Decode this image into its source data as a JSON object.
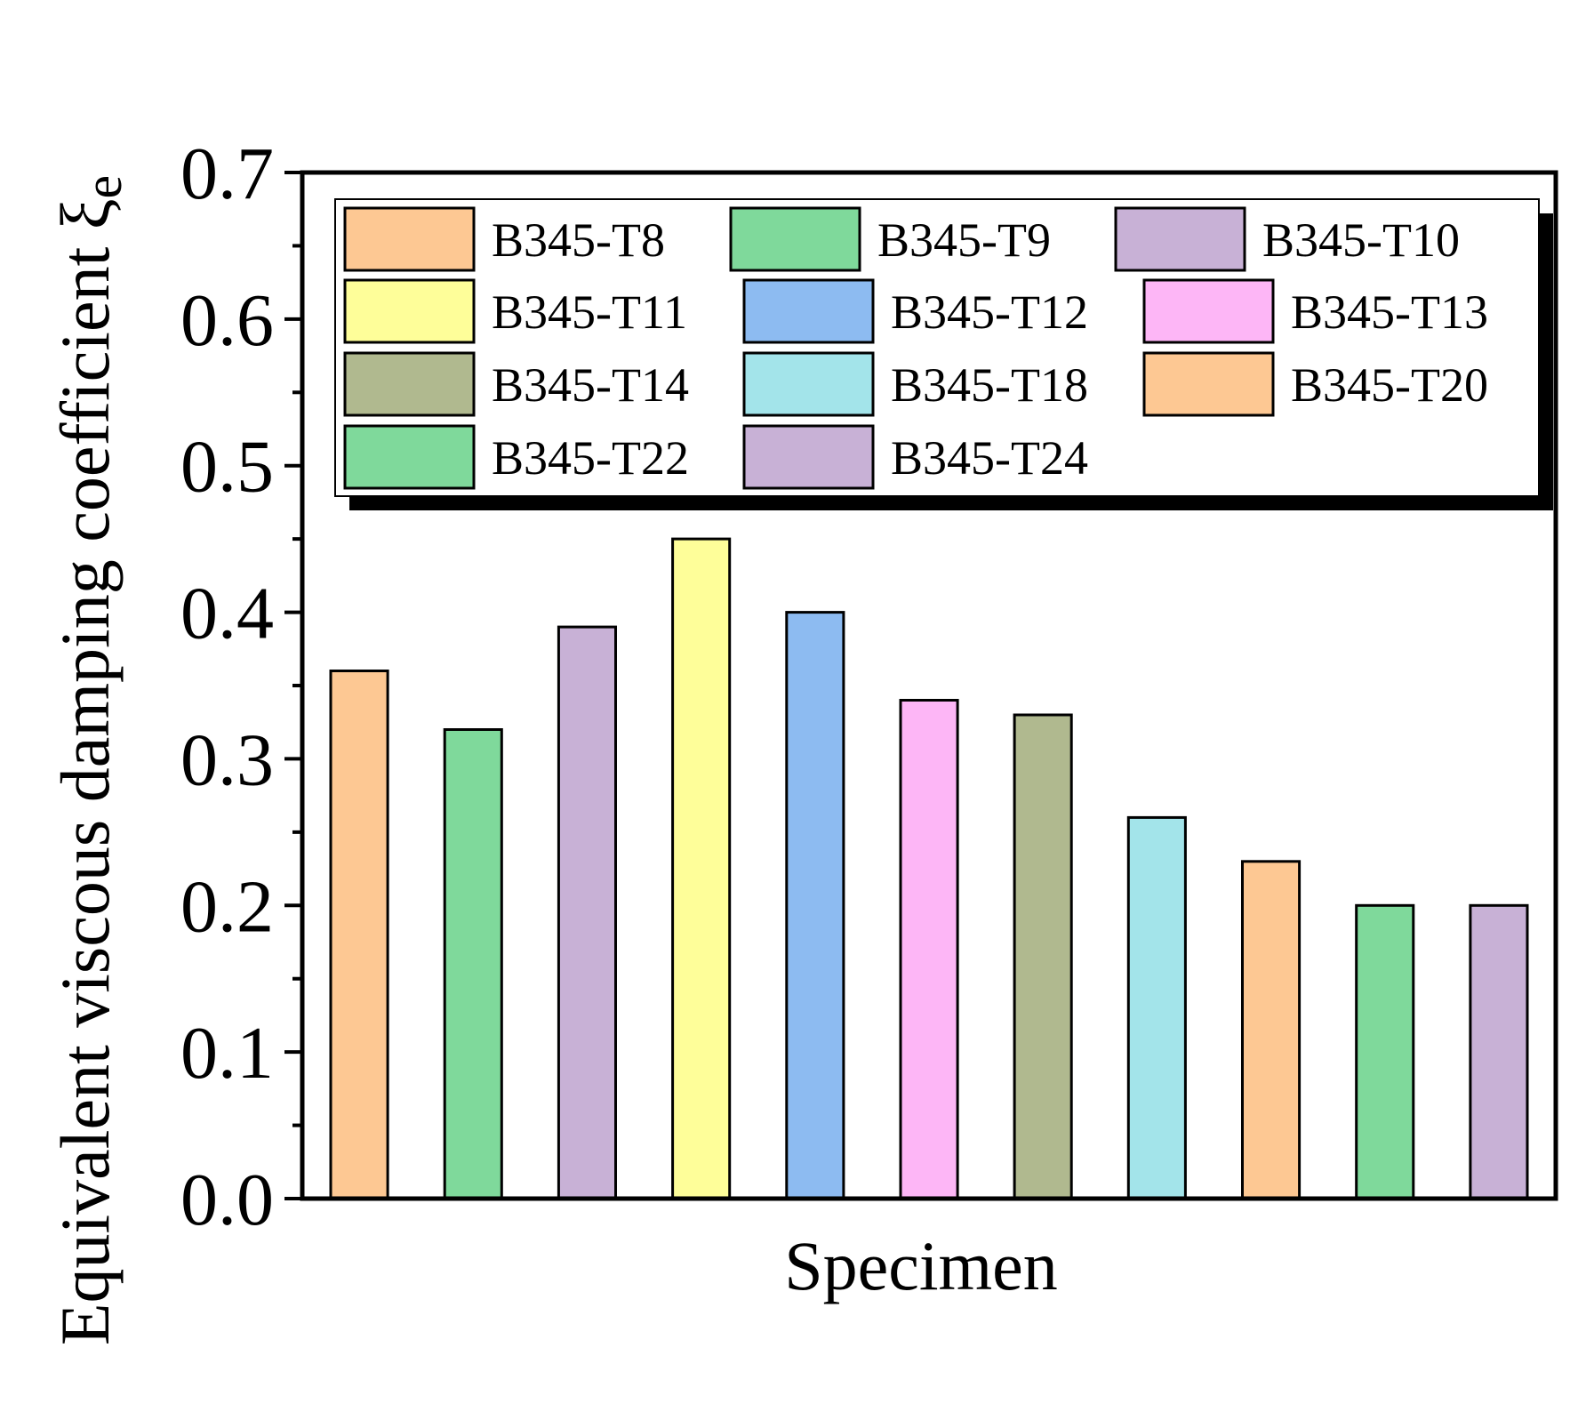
{
  "chart_data": {
    "type": "bar",
    "title": "",
    "xlabel": "Specimen",
    "ylabel": "Equivalent viscous damping coefficient ξ",
    "ylabel_subscript": "e",
    "ylim": [
      0.0,
      0.7
    ],
    "yticks": [
      {
        "value": 0.0,
        "label": "0.0"
      },
      {
        "value": 0.1,
        "label": "0.1"
      },
      {
        "value": 0.2,
        "label": "0.2"
      },
      {
        "value": 0.3,
        "label": "0.3"
      },
      {
        "value": 0.4,
        "label": "0.4"
      },
      {
        "value": 0.5,
        "label": "0.5"
      },
      {
        "value": 0.6,
        "label": "0.6"
      },
      {
        "value": 0.7,
        "label": "0.7"
      }
    ],
    "grid": false,
    "legend_position": "top",
    "categories": [
      "B345-T8",
      "B345-T9",
      "B345-T10",
      "B345-T11",
      "B345-T12",
      "B345-T13",
      "B345-T14",
      "B345-T18",
      "B345-T20",
      "B345-T22",
      "B345-T24"
    ],
    "values": [
      0.36,
      0.32,
      0.39,
      0.45,
      0.4,
      0.34,
      0.33,
      0.26,
      0.23,
      0.2,
      0.2
    ],
    "colors": [
      "#FDC893",
      "#7FD99B",
      "#C8B1D6",
      "#FEFE99",
      "#8DBBF1",
      "#FDB6F6",
      "#B0B98F",
      "#A3E4EA",
      "#FDC893",
      "#7FD99B",
      "#C8B1D6"
    ]
  }
}
